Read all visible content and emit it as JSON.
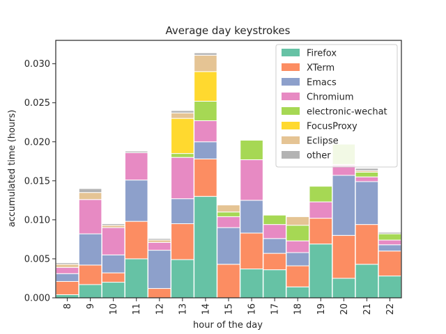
{
  "chart_data": {
    "type": "bar",
    "stacked": true,
    "title": "Average day keystrokes",
    "xlabel": "hour of the day",
    "ylabel": "accumulated time (hours)",
    "categories": [
      "8",
      "9",
      "10",
      "11",
      "12",
      "13",
      "14",
      "15",
      "16",
      "17",
      "18",
      "19",
      "20",
      "21",
      "22"
    ],
    "ylim": [
      0,
      0.033
    ],
    "yticks": [
      0.0,
      0.005,
      0.01,
      0.015,
      0.02,
      0.025,
      0.03
    ],
    "ytick_labels": [
      "0.000",
      "0.005",
      "0.010",
      "0.015",
      "0.020",
      "0.025",
      "0.030"
    ],
    "legend_position": "top-right",
    "grid": false,
    "series": [
      {
        "name": "Firefox",
        "color": "#66c2a5",
        "values": [
          0.0004,
          0.0017,
          0.002,
          0.005,
          0.0,
          0.0049,
          0.013,
          0.0,
          0.0037,
          0.0036,
          0.0014,
          0.0069,
          0.0025,
          0.0043,
          0.0028
        ]
      },
      {
        "name": "XTerm",
        "color": "#fc8d62",
        "values": [
          0.0017,
          0.0025,
          0.0012,
          0.0048,
          0.0012,
          0.0046,
          0.0048,
          0.0043,
          0.0046,
          0.0021,
          0.0027,
          0.0033,
          0.0055,
          0.0051,
          0.0032
        ]
      },
      {
        "name": "Emacs",
        "color": "#8da0cb",
        "values": [
          0.001,
          0.004,
          0.0023,
          0.0053,
          0.0049,
          0.0032,
          0.0022,
          0.0047,
          0.0042,
          0.0019,
          0.0017,
          0.0,
          0.0077,
          0.0055,
          0.0008
        ]
      },
      {
        "name": "Chromium",
        "color": "#e78ac3",
        "values": [
          0.0008,
          0.0044,
          0.0035,
          0.0035,
          0.001,
          0.0053,
          0.0027,
          0.0014,
          0.0052,
          0.0018,
          0.0015,
          0.0021,
          0.0014,
          0.0006,
          0.0006
        ]
      },
      {
        "name": "electronic-wechat",
        "color": "#a6d854",
        "values": [
          0.0,
          0.0,
          0.0,
          0.0,
          0.0,
          0.0005,
          0.0025,
          0.0006,
          0.0025,
          0.0012,
          0.002,
          0.002,
          0.0026,
          0.0006,
          0.0008
        ]
      },
      {
        "name": "FocusProxy",
        "color": "#ffd92f",
        "values": [
          0.0,
          0.0,
          0.0,
          0.0,
          0.0,
          0.0045,
          0.0038,
          0.0,
          0.0,
          0.0,
          0.0,
          0.0,
          0.0,
          0.0,
          0.0
        ]
      },
      {
        "name": "Eclipse",
        "color": "#e5c494",
        "values": [
          0.0004,
          0.0009,
          0.0003,
          0.0,
          0.0003,
          0.0007,
          0.0021,
          0.0009,
          0.0,
          0.0,
          0.0011,
          0.0,
          0.0,
          0.0002,
          0.0
        ]
      },
      {
        "name": "other",
        "color": "#b3b3b3",
        "values": [
          0.0002,
          0.0005,
          0.0002,
          0.0002,
          0.0002,
          0.0003,
          0.0003,
          0.0,
          0.0,
          0.0,
          0.0,
          0.0,
          0.0,
          0.0003,
          0.0002
        ]
      }
    ]
  }
}
